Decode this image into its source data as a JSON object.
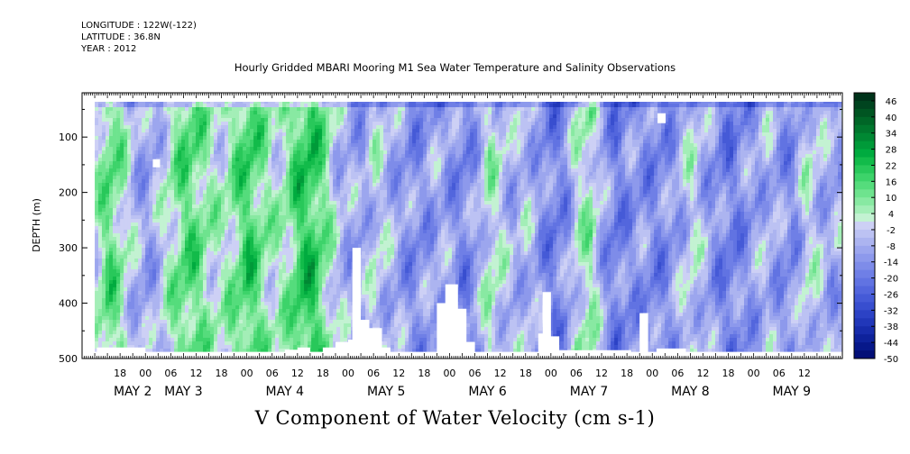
{
  "header": {
    "longitude": "LONGITUDE : 122W(-122)",
    "latitude": "LATITUDE : 36.8N",
    "year": "YEAR : 2012",
    "title": "Hourly Gridded MBARI Mooring M1 Sea Water Temperature and Salinity Observations"
  },
  "chart_data": {
    "type": "heatmap",
    "title": "Hourly Gridded MBARI Mooring M1 Sea Water Temperature and Salinity Observations",
    "xlabel": "",
    "ylabel": "DEPTH (m)",
    "bottom_title": "V Component of Water Velocity (cm s-1)",
    "y_ticks": [
      100,
      200,
      300,
      400,
      500
    ],
    "ylim": [
      500,
      20
    ],
    "x_hour_ticks": [
      "18",
      "00",
      "06",
      "12",
      "18",
      "00",
      "06",
      "12",
      "18",
      "00",
      "06",
      "12",
      "18",
      "00",
      "06",
      "12",
      "18",
      "00",
      "06",
      "12",
      "18",
      "00",
      "06",
      "12",
      "18",
      "00",
      "06",
      "12"
    ],
    "x_date_labels": [
      {
        "label": "MAY  2",
        "hour": 24
      },
      {
        "label": "MAY  3",
        "hour": 48
      },
      {
        "label": "MAY  4",
        "hour": 96
      },
      {
        "label": "MAY  5",
        "hour": 144
      },
      {
        "label": "MAY  6",
        "hour": 192
      },
      {
        "label": "MAY  7",
        "hour": 240
      },
      {
        "label": "MAY  8",
        "hour": 288
      },
      {
        "label": "MAY  9",
        "hour": 336
      }
    ],
    "colorbar": {
      "labels": [
        "46",
        "40",
        "34",
        "28",
        "22",
        "16",
        "10",
        "4",
        "-2",
        "-8",
        "-14",
        "-20",
        "-26",
        "-32",
        "-38",
        "-44",
        "-50"
      ],
      "levels": [
        49,
        46,
        43,
        40,
        37,
        34,
        31,
        28,
        25,
        22,
        19,
        16,
        13,
        10,
        7,
        4,
        1,
        -2,
        -5,
        -8,
        -11,
        -14,
        -17,
        -20,
        -23,
        -26,
        -29,
        -32,
        -35,
        -38,
        -41,
        -44,
        -47,
        -50
      ],
      "colors_top_to_bottom": [
        "#00331a",
        "#00441f",
        "#005522",
        "#006627",
        "#00772d",
        "#008833",
        "#009a39",
        "#00ab3f",
        "#12bb4a",
        "#28c85a",
        "#3dd36a",
        "#55dc7c",
        "#6ee38e",
        "#88e9a2",
        "#a3eeb7",
        "#c3f2d2",
        "#cdd0f5",
        "#bcc2f3",
        "#acb4f0",
        "#9ca6ee",
        "#8d99ec",
        "#7e8ce9",
        "#6f7fe6",
        "#6173e2",
        "#5366dd",
        "#455ad7",
        "#384ecf",
        "#2c42c5",
        "#2137b9",
        "#172cab",
        "#0e229b",
        "#07188a",
        "#030f77"
      ]
    },
    "field_description_columns": [
      {
        "hour": 6,
        "mean": 2
      },
      {
        "hour": 12,
        "mean": 14
      },
      {
        "hour": 18,
        "mean": 6
      },
      {
        "hour": 24,
        "mean": -6
      },
      {
        "hour": 30,
        "mean": -10
      },
      {
        "hour": 36,
        "mean": -4
      },
      {
        "hour": 42,
        "mean": 6
      },
      {
        "hour": 48,
        "mean": 14
      },
      {
        "hour": 54,
        "mean": 12
      },
      {
        "hour": 60,
        "mean": 4
      },
      {
        "hour": 66,
        "mean": 2
      },
      {
        "hour": 72,
        "mean": 10
      },
      {
        "hour": 78,
        "mean": 18
      },
      {
        "hour": 84,
        "mean": 10
      },
      {
        "hour": 90,
        "mean": 2
      },
      {
        "hour": 96,
        "mean": 6
      },
      {
        "hour": 102,
        "mean": 18
      },
      {
        "hour": 108,
        "mean": 20
      },
      {
        "hour": 114,
        "mean": 10
      },
      {
        "hour": 120,
        "mean": -4
      },
      {
        "hour": 126,
        "mean": -8
      },
      {
        "hour": 132,
        "mean": -10
      },
      {
        "hour": 138,
        "mean": 0
      },
      {
        "hour": 144,
        "mean": -6
      },
      {
        "hour": 150,
        "mean": -10
      },
      {
        "hour": 156,
        "mean": -14
      },
      {
        "hour": 162,
        "mean": -12
      },
      {
        "hour": 168,
        "mean": -8
      },
      {
        "hour": 174,
        "mean": -12
      },
      {
        "hour": 180,
        "mean": -16
      },
      {
        "hour": 186,
        "mean": -10
      },
      {
        "hour": 192,
        "mean": 4
      },
      {
        "hour": 198,
        "mean": -2
      },
      {
        "hour": 204,
        "mean": -8
      },
      {
        "hour": 210,
        "mean": -4
      },
      {
        "hour": 216,
        "mean": -12
      },
      {
        "hour": 222,
        "mean": -18
      },
      {
        "hour": 228,
        "mean": -14
      },
      {
        "hour": 234,
        "mean": 2
      },
      {
        "hour": 240,
        "mean": 6
      },
      {
        "hour": 246,
        "mean": -10
      },
      {
        "hour": 252,
        "mean": -18
      },
      {
        "hour": 258,
        "mean": -14
      },
      {
        "hour": 264,
        "mean": -12
      },
      {
        "hour": 270,
        "mean": -16
      },
      {
        "hour": 276,
        "mean": -14
      },
      {
        "hour": 282,
        "mean": -8
      },
      {
        "hour": 288,
        "mean": 0
      },
      {
        "hour": 294,
        "mean": -8
      },
      {
        "hour": 300,
        "mean": -14
      },
      {
        "hour": 306,
        "mean": -18
      },
      {
        "hour": 312,
        "mean": -14
      },
      {
        "hour": 318,
        "mean": -10
      },
      {
        "hour": 324,
        "mean": -6
      },
      {
        "hour": 330,
        "mean": -12
      },
      {
        "hour": 336,
        "mean": -14
      },
      {
        "hour": 342,
        "mean": 0
      },
      {
        "hour": 348,
        "mean": -4
      },
      {
        "hour": 354,
        "mean": -10
      },
      {
        "hour": 360,
        "mean": -6
      }
    ],
    "missing_data_bottom_profile": [
      {
        "hour": 0,
        "depth": 488
      },
      {
        "hour": 7,
        "depth": 480
      },
      {
        "hour": 30,
        "depth": 488
      },
      {
        "hour": 96,
        "depth": 484
      },
      {
        "hour": 102,
        "depth": 480
      },
      {
        "hour": 108,
        "depth": 488
      },
      {
        "hour": 114,
        "depth": 480
      },
      {
        "hour": 120,
        "depth": 470
      },
      {
        "hour": 126,
        "depth": 466
      },
      {
        "hour": 128,
        "depth": 300
      },
      {
        "hour": 132,
        "depth": 430
      },
      {
        "hour": 136,
        "depth": 445
      },
      {
        "hour": 142,
        "depth": 480
      },
      {
        "hour": 146,
        "depth": 488
      },
      {
        "hour": 164,
        "depth": 488
      },
      {
        "hour": 168,
        "depth": 400
      },
      {
        "hour": 172,
        "depth": 366
      },
      {
        "hour": 178,
        "depth": 410
      },
      {
        "hour": 182,
        "depth": 470
      },
      {
        "hour": 186,
        "depth": 488
      },
      {
        "hour": 212,
        "depth": 488
      },
      {
        "hour": 216,
        "depth": 455
      },
      {
        "hour": 218,
        "depth": 380
      },
      {
        "hour": 222,
        "depth": 460
      },
      {
        "hour": 226,
        "depth": 485
      },
      {
        "hour": 260,
        "depth": 488
      },
      {
        "hour": 264,
        "depth": 418
      },
      {
        "hour": 268,
        "depth": 488
      },
      {
        "hour": 272,
        "depth": 482
      },
      {
        "hour": 286,
        "depth": 488
      },
      {
        "hour": 360,
        "depth": 488
      }
    ]
  }
}
